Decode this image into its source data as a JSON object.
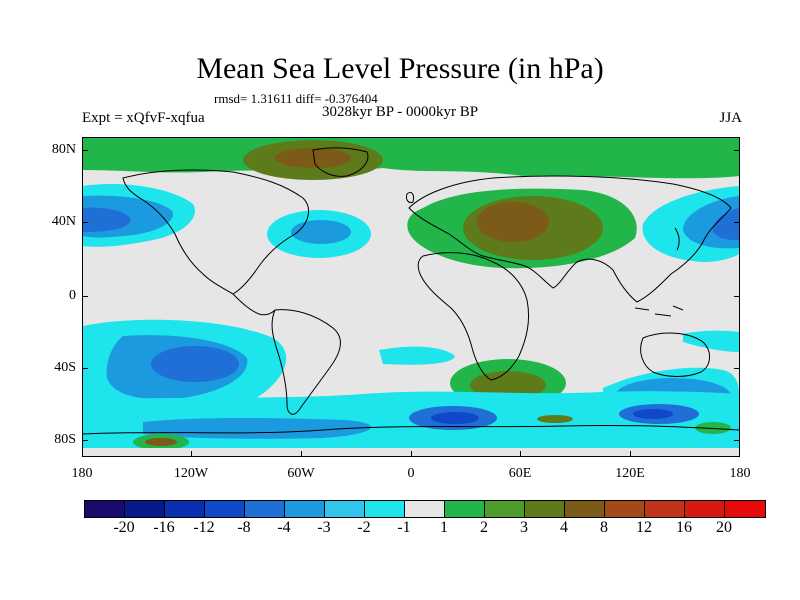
{
  "title": "Mean Sea Level Pressure (in hPa)",
  "stats": "rmsd= 1.31611 diff= -0.376404",
  "experiment": "Expt = xQfvF-xqfua",
  "period": "3028kyr BP - 0000kyr BP",
  "season": "JJA",
  "y_axis_labels": [
    "80N",
    "40N",
    "0",
    "40S",
    "80S"
  ],
  "x_axis_labels": [
    "180",
    "120W",
    "60W",
    "0",
    "60E",
    "120E",
    "180"
  ],
  "colorbar": {
    "labels": [
      "-20",
      "-16",
      "-12",
      "-8",
      "-4",
      "-3",
      "-2",
      "-1",
      "1",
      "2",
      "3",
      "4",
      "8",
      "12",
      "16",
      "20"
    ],
    "colors": [
      "#1a0a6e",
      "#061a8c",
      "#0a2fb0",
      "#0f48c8",
      "#1f6fd6",
      "#1b9ae0",
      "#33c4ec",
      "#1ee4ec",
      "#e6e6e6",
      "#22b54a",
      "#4f9c2e",
      "#5e7b1c",
      "#7c5a17",
      "#a34a1a",
      "#c0341a",
      "#d61a12",
      "#e80a0a"
    ]
  },
  "colors": {
    "neutral": "#e6e6e6",
    "cyan": "#1ee4ec",
    "light_blue": "#1b9ae0",
    "mid_blue": "#1f6fd6",
    "dark_blue": "#0f48c8",
    "green": "#22b54a",
    "olive": "#5e7b1c",
    "brown": "#7c5a17"
  }
}
